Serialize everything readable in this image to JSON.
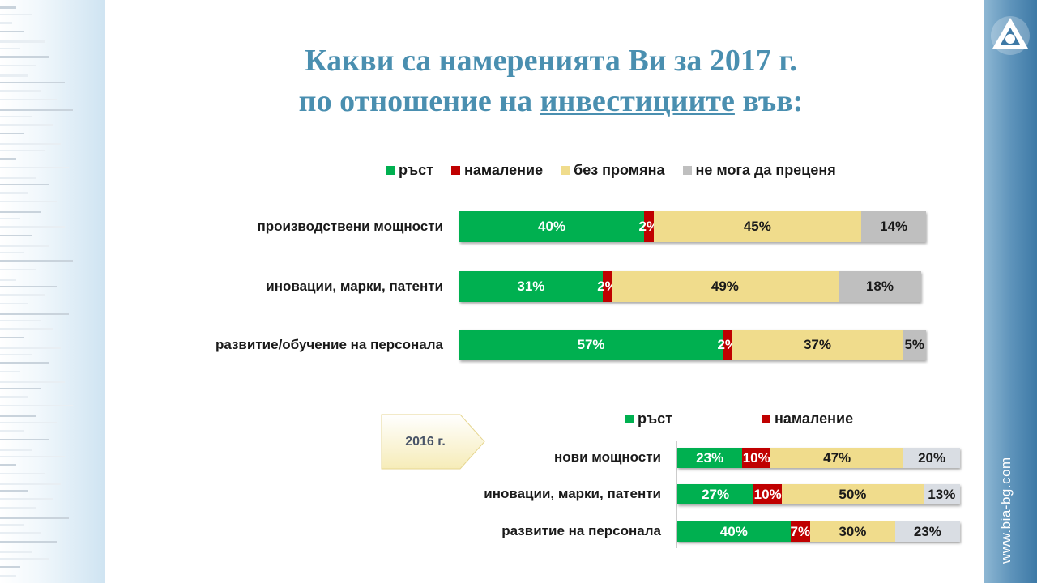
{
  "title": {
    "line1": "Какви са намеренията Ви за 2017 г.",
    "line2_pre": "по отношение на ",
    "line2_underlined": "инвестициите",
    "line2_post": " във:"
  },
  "site_url": "www.bia-bg.com",
  "badge": {
    "year_label": "2016 г."
  },
  "colors": {
    "growth": "#00b050",
    "decrease": "#c00000",
    "no_change": "#f0dc8c",
    "cannot_judge": "#bfbfbf",
    "cannot_judge_2016": "#d9dde3"
  },
  "chart_data": [
    {
      "type": "bar",
      "orientation": "horizontal",
      "stacked": true,
      "legend_position": "top",
      "categories": [
        "производствени мощности",
        "иновации, марки, патенти",
        "развитие/обучение на персонала"
      ],
      "series": [
        {
          "name": "ръст",
          "values": [
            40,
            31,
            57
          ],
          "labels": [
            "40%",
            "31%",
            "57%"
          ]
        },
        {
          "name": "намаление",
          "values": [
            2,
            2,
            2
          ],
          "labels": [
            "2%",
            "2%",
            "2%"
          ]
        },
        {
          "name": "без промяна",
          "values": [
            45,
            49,
            37
          ],
          "labels": [
            "45%",
            "49%",
            "37%"
          ]
        },
        {
          "name": "не мога да преценя",
          "values": [
            14,
            18,
            5
          ],
          "labels": [
            "14%",
            "18%",
            "5%"
          ]
        }
      ],
      "xlim": [
        0,
        101
      ]
    },
    {
      "type": "bar",
      "orientation": "horizontal",
      "stacked": true,
      "legend_position": "top",
      "categories": [
        "нови мощности",
        "иновации, марки, патенти",
        "развитие на персонала"
      ],
      "series": [
        {
          "name": "ръст",
          "values": [
            23,
            27,
            40
          ],
          "labels": [
            "23%",
            "27%",
            "40%"
          ]
        },
        {
          "name": "намаление",
          "values": [
            10,
            10,
            7
          ],
          "labels": [
            "10%",
            "10%",
            "7%"
          ]
        },
        {
          "name": "",
          "values": [
            47,
            50,
            30
          ],
          "labels": [
            "47%",
            "50%",
            "30%"
          ]
        },
        {
          "name": "",
          "values": [
            20,
            13,
            23
          ],
          "labels": [
            "20%",
            "13%",
            "23%"
          ]
        }
      ],
      "xlim": [
        0,
        100
      ]
    }
  ]
}
